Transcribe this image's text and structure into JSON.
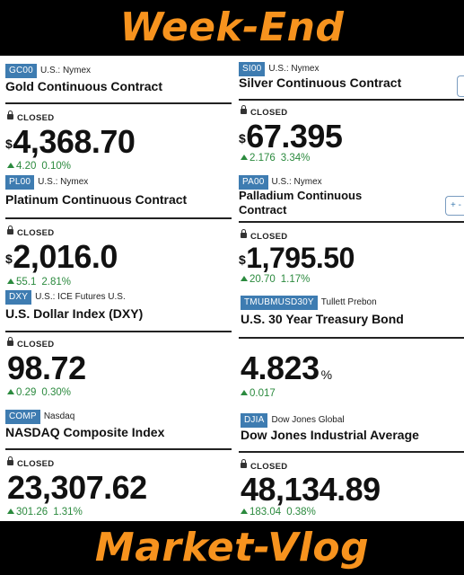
{
  "banner_top": "Week-End",
  "banner_bottom": "Market-Vlog",
  "left": [
    {
      "symbol": "GC00",
      "exchange": "U.S.: Nymex",
      "name": "Gold Continuous Contract",
      "status": "CLOSED",
      "currency": "$",
      "price": "4,368.70",
      "change": "4.20",
      "percent": "0.10%"
    },
    {
      "symbol": "PL00",
      "exchange": "U.S.: Nymex",
      "name": "Platinum Continuous Contract",
      "status": "CLOSED",
      "currency": "$",
      "price": "2,016.0",
      "change": "55.1",
      "percent": "2.81%"
    },
    {
      "symbol": "DXY",
      "exchange": "U.S.: ICE Futures U.S.",
      "name": "U.S. Dollar Index (DXY)",
      "status": "CLOSED",
      "price": "98.72",
      "change": "0.29",
      "percent": "0.30%"
    },
    {
      "symbol": "COMP",
      "exchange": "Nasdaq",
      "name": "NASDAQ Composite Index",
      "status": "CLOSED",
      "price": "23,307.62",
      "change": "301.26",
      "percent": "1.31%"
    }
  ],
  "right": [
    {
      "symbol": "SI00",
      "exchange": "U.S.: Nymex",
      "name": "Silver Continuous Contract",
      "status": "CLOSED",
      "currency": "$",
      "price": "67.395",
      "change": "2.176",
      "percent": "3.34%"
    },
    {
      "symbol": "PA00",
      "exchange": "U.S.: Nymex",
      "name_line1": "Palladium Continuous",
      "name_line2": "Contract",
      "status": "CLOSED",
      "currency": "$",
      "price": "1,795.50",
      "change": "20.70",
      "percent": "1.17%"
    },
    {
      "symbol": "TMUBMUSD30Y",
      "exchange": "Tullett Prebon",
      "name": "U.S. 30 Year Treasury Bond",
      "price": "4.823",
      "price_suffix": "%",
      "change": "0.017"
    },
    {
      "symbol": "DJIA",
      "exchange": "Dow Jones Global",
      "name": "Dow Jones Industrial Average",
      "status": "CLOSED",
      "price": "48,134.89",
      "change": "183.04",
      "percent": "0.38%"
    }
  ],
  "buttons": {
    "follow_partial": "+ -"
  },
  "colors": {
    "accent_orange": "#f7931e",
    "tag_blue": "#3e7cb1",
    "positive_green": "#2b8a3e"
  }
}
